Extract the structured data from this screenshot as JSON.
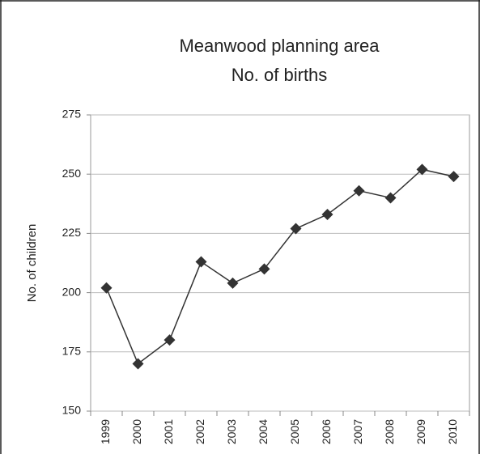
{
  "chart_data": {
    "type": "line",
    "title": "Meanwood planning area",
    "subtitle": "No. of births",
    "y_label": "No. of children",
    "categories": [
      "1999",
      "2000",
      "2001",
      "2002",
      "2003",
      "2004",
      "2005",
      "2006",
      "2007",
      "2008",
      "2009",
      "2010"
    ],
    "values": [
      202,
      170,
      180,
      213,
      204,
      210,
      227,
      233,
      243,
      240,
      252,
      249
    ],
    "color": "#333333",
    "ylim": [
      150,
      275
    ],
    "yticks": [
      150,
      175,
      200,
      225,
      250,
      275
    ],
    "grid": true
  }
}
